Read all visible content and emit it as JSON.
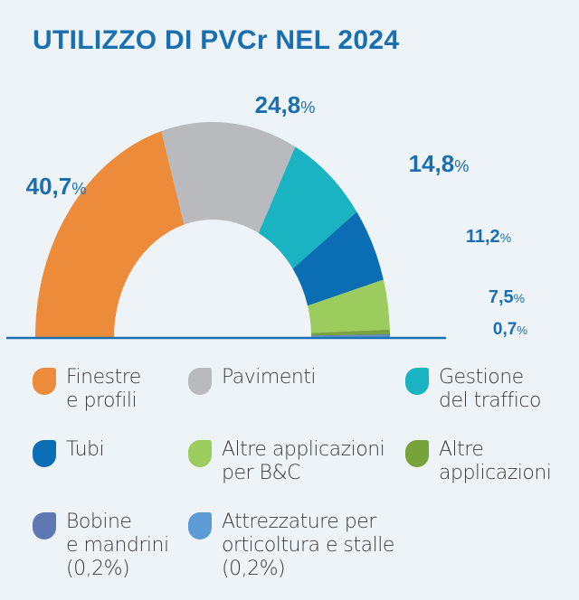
{
  "title": "UTILIZZO DI PVCr NEL 2024",
  "chart_data": {
    "type": "pie",
    "variant": "half-donut",
    "title": "UTILIZZO DI PVCr NEL 2024",
    "slices": [
      {
        "name": "Finestre e profili",
        "value": 40.7,
        "label": "40,7",
        "color": "#ec8b3a"
      },
      {
        "name": "Pavimenti",
        "value": 24.8,
        "label": "24,8",
        "color": "#b8babd"
      },
      {
        "name": "Gestione del traffico",
        "value": 14.8,
        "label": "14,8",
        "color": "#1ab3c1"
      },
      {
        "name": "Tubi",
        "value": 11.2,
        "label": "11,2",
        "color": "#0b6db3"
      },
      {
        "name": "Altre applicazioni per B&C",
        "value": 7.5,
        "label": "7,5",
        "color": "#9ccc5e"
      },
      {
        "name": "Altre applicazioni",
        "value": 0.7,
        "label": "0,7",
        "color": "#78a33a"
      },
      {
        "name": "Bobine e mandrini",
        "value": 0.2,
        "label": null,
        "color": "#5f78b4"
      },
      {
        "name": "Attrezzature per orticoltura e stalle",
        "value": 0.2,
        "label": null,
        "color": "#5c9bd5"
      }
    ],
    "percent_sign": "%",
    "legend": [
      {
        "lines": [
          "Finestre",
          "e profili"
        ],
        "color": "#ec8b3a"
      },
      {
        "lines": [
          "Pavimenti"
        ],
        "color": "#b8babd"
      },
      {
        "lines": [
          "Gestione",
          "del traffico"
        ],
        "color": "#1ab3c1"
      },
      {
        "lines": [
          "Tubi"
        ],
        "color": "#0b6db3"
      },
      {
        "lines": [
          "Altre applicazioni",
          "per B&C"
        ],
        "color": "#9ccc5e"
      },
      {
        "lines": [
          "Altre",
          "applicazioni"
        ],
        "color": "#78a33a"
      },
      {
        "lines": [
          "Bobine",
          "e mandrini",
          "(0,2%)"
        ],
        "color": "#5f78b4"
      },
      {
        "lines": [
          "Attrezzature per",
          "orticoltura e stalle",
          "(0,2%)"
        ],
        "color": "#5c9bd5"
      }
    ],
    "legend_placement": "bottom"
  }
}
